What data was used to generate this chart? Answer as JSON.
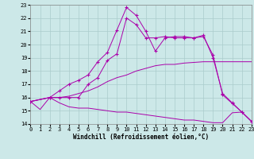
{
  "xlabel": "Windchill (Refroidissement éolien,°C)",
  "background_color": "#cce8e8",
  "grid_color": "#aacccc",
  "line_color": "#aa00aa",
  "xmin": 0,
  "xmax": 23,
  "ymin": 14,
  "ymax": 23,
  "x_ticks": [
    0,
    1,
    2,
    3,
    4,
    5,
    6,
    7,
    8,
    9,
    10,
    11,
    12,
    13,
    14,
    15,
    16,
    17,
    18,
    19,
    20,
    21,
    22,
    23
  ],
  "y_ticks": [
    14,
    15,
    16,
    17,
    18,
    19,
    20,
    21,
    22,
    23
  ],
  "curve1_x": [
    0,
    1,
    2,
    3,
    4,
    5,
    6,
    7,
    8,
    9,
    10,
    11,
    12,
    13,
    14,
    15,
    16,
    17,
    18,
    19,
    20,
    21,
    22,
    23
  ],
  "curve1_y": [
    15.7,
    15.1,
    16.0,
    15.6,
    15.3,
    15.2,
    15.2,
    15.1,
    15.0,
    14.9,
    14.9,
    14.8,
    14.7,
    14.6,
    14.5,
    14.4,
    14.3,
    14.3,
    14.2,
    14.1,
    14.1,
    14.85,
    14.9,
    14.2
  ],
  "curve2_x": [
    0,
    2,
    3,
    4,
    5,
    6,
    7,
    8,
    9,
    10,
    11,
    12,
    13,
    14,
    15,
    16,
    17,
    18,
    19,
    20,
    21,
    22,
    23
  ],
  "curve2_y": [
    15.7,
    16.0,
    16.0,
    16.1,
    16.3,
    16.5,
    16.8,
    17.2,
    17.5,
    17.7,
    18.0,
    18.2,
    18.4,
    18.5,
    18.5,
    18.6,
    18.65,
    18.7,
    18.7,
    18.7,
    18.7,
    18.7,
    18.7
  ],
  "curve3_x": [
    0,
    2,
    3,
    4,
    5,
    6,
    7,
    8,
    9,
    10,
    11,
    12,
    13,
    14,
    15,
    16,
    17,
    18,
    19,
    20,
    21,
    22,
    23
  ],
  "curve3_y": [
    15.7,
    16.0,
    16.5,
    17.0,
    17.3,
    17.7,
    18.7,
    19.4,
    21.1,
    22.8,
    22.2,
    21.0,
    19.5,
    20.5,
    20.6,
    20.6,
    20.5,
    20.7,
    19.0,
    16.3,
    15.6,
    14.9,
    14.2
  ],
  "curve4_x": [
    0,
    2,
    3,
    4,
    5,
    6,
    7,
    8,
    9,
    10,
    11,
    12,
    13,
    14,
    15,
    16,
    17,
    18,
    19,
    20,
    21,
    22,
    23
  ],
  "curve4_y": [
    15.7,
    16.0,
    16.0,
    16.0,
    16.0,
    17.0,
    17.5,
    18.8,
    19.3,
    22.0,
    21.5,
    20.5,
    20.5,
    20.6,
    20.5,
    20.5,
    20.5,
    20.6,
    19.2,
    16.2,
    15.55,
    14.9,
    14.2
  ]
}
